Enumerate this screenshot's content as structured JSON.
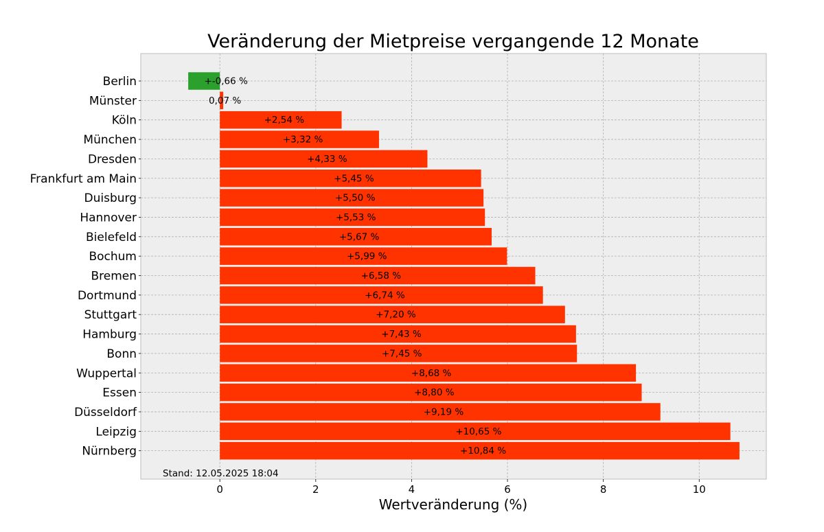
{
  "chart_data": {
    "type": "bar",
    "orientation": "horizontal",
    "title": "Veränderung der Mietpreise vergangende 12 Monate",
    "xlabel": "Wertveränderung (%)",
    "ylabel": "",
    "xlim": [
      -1.65,
      11.4
    ],
    "xticks": [
      0,
      2,
      4,
      6,
      8,
      10
    ],
    "grid": true,
    "categories": [
      "Berlin",
      "Münster",
      "Köln",
      "München",
      "Dresden",
      "Frankfurt am Main",
      "Duisburg",
      "Hannover",
      "Bielefeld",
      "Bochum",
      "Bremen",
      "Dortmund",
      "Stuttgart",
      "Hamburg",
      "Bonn",
      "Wuppertal",
      "Essen",
      "Düsseldorf",
      "Leipzig",
      "Nürnberg"
    ],
    "values": [
      -0.66,
      0.07,
      2.54,
      3.32,
      4.33,
      5.45,
      5.5,
      5.53,
      5.67,
      5.99,
      6.58,
      6.74,
      7.2,
      7.43,
      7.45,
      8.68,
      8.8,
      9.19,
      10.65,
      10.84
    ],
    "data_labels": [
      "+-0,66 %",
      "0,07 %",
      "+2,54 %",
      "+3,32 %",
      "+4,33 %",
      "+5,45 %",
      "+5,50 %",
      "+5,53 %",
      "+5,67 %",
      "+5,99 %",
      "+6,58 %",
      "+6,74 %",
      "+7,20 %",
      "+7,43 %",
      "+7,45 %",
      "+8,68 %",
      "+8,80 %",
      "+9,19 %",
      "+10,65 %",
      "+10,84 %"
    ],
    "annotation": "Stand: 12.05.2025 18:04",
    "colors": {
      "positive": "#ff3300",
      "negative": "#2ca02c",
      "plot_background": "#eeeeee",
      "grid": "#b0b0b0"
    }
  }
}
